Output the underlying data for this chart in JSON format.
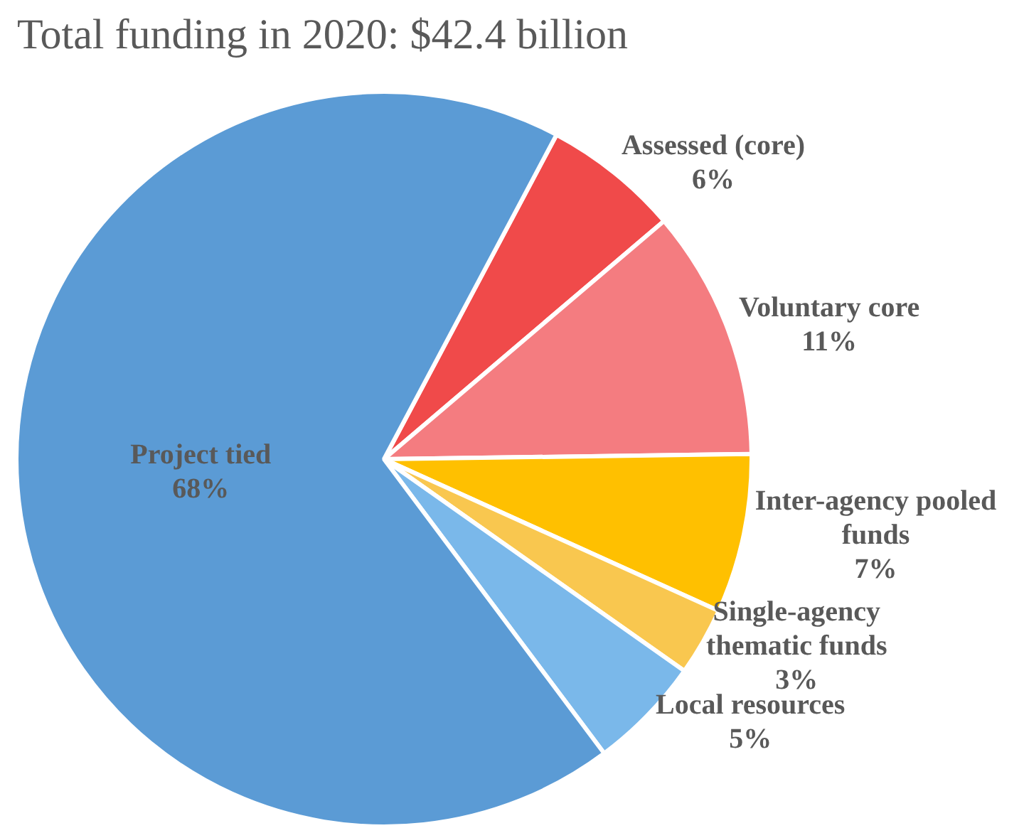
{
  "chart_data": {
    "type": "pie",
    "title": "Total funding in 2020: $42.4 billion",
    "categories": [
      "Assessed (core)",
      "Voluntary core",
      "Inter-agency pooled funds",
      "Single-agency thematic funds",
      "Local resources",
      "Project tied"
    ],
    "values": [
      6,
      11,
      7,
      3,
      5,
      68
    ],
    "value_labels": [
      "6%",
      "11%",
      "7%",
      "3%",
      "5%",
      "68%"
    ],
    "colors": [
      "#f04a4a",
      "#f47c80",
      "#ffc000",
      "#f9c74f",
      "#7ab8ea",
      "#5b9bd5"
    ],
    "legend": false
  }
}
